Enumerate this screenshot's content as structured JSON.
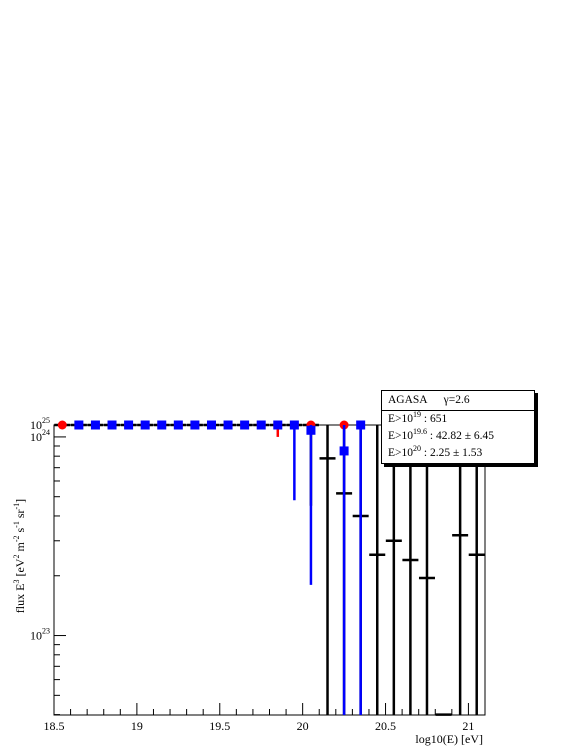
{
  "stats_box": {
    "name": "AGASA",
    "gamma": "γ=2.6",
    "rows": [
      {
        "prefix": "E>10",
        "exp": "19",
        "value": " : 651"
      },
      {
        "prefix": "E>10",
        "exp": "19.6",
        "value": " : 42.82 ± 6.45"
      },
      {
        "prefix": "E>10",
        "exp": "20",
        "value": "  : 2.25 ± 1.53"
      }
    ]
  },
  "chart_data": {
    "type": "scatter",
    "xlabel": "log10(E) [eV]",
    "ylabel": {
      "main": "flux E",
      "exp1": "3",
      "mid": " [eV",
      "exp2": "2",
      "mid2": " m",
      "exp3": "-2",
      "mid3": " s",
      "exp4": "-1",
      "mid4": " sr",
      "exp5": "-1",
      "end": "]"
    },
    "xlim": [
      18.5,
      21.1
    ],
    "ylim_log10": [
      22.6,
      24.06
    ],
    "y_log_scale": true,
    "x_ticks": [
      "18.5",
      "19",
      "19.5",
      "20",
      "20.5",
      "21"
    ],
    "x_tick_values": [
      18.5,
      19,
      19.5,
      20,
      20.5,
      21
    ],
    "y_ticks": [
      {
        "base": "10",
        "exp": "23",
        "value": 1e+23
      },
      {
        "base": "10",
        "exp": "24",
        "value": 1e+24
      },
      {
        "base": "10",
        "exp": "25",
        "value": 1e+25
      }
    ],
    "colors": {
      "black": "#000000",
      "red": "#ff0000",
      "blue": "#0000ff"
    },
    "series": [
      {
        "marker": "dash",
        "color": "#000000",
        "points": [
          {
            "x": 18.55,
            "y": 2e+24
          },
          {
            "x": 18.65,
            "y": 2e+24
          },
          {
            "x": 18.75,
            "y": 1.95e+24
          },
          {
            "x": 18.85,
            "y": 2e+24
          },
          {
            "x": 18.95,
            "y": 2.1e+24
          },
          {
            "x": 19.05,
            "y": 2.15e+24
          },
          {
            "x": 19.15,
            "y": 2.2e+24
          },
          {
            "x": 19.25,
            "y": 2.4e+24
          },
          {
            "x": 19.35,
            "y": 2.55e+24
          },
          {
            "x": 19.45,
            "y": 2.55e+24
          },
          {
            "x": 19.55,
            "y": 2.65e+24
          },
          {
            "x": 19.65,
            "y": 2.75e+24
          },
          {
            "x": 19.75,
            "y": 2.8e+24
          },
          {
            "x": 19.85,
            "y": 2.55e+24,
            "ylo": 2.2e+24,
            "yhi": 3.3e+24
          },
          {
            "x": 19.95,
            "y": 1.9e+24,
            "ylo": 1.2e+24,
            "yhi": 2.5e+24
          },
          {
            "x": 20.05,
            "y": 1.3e+24,
            "ylo": 4.5e+23,
            "yhi": 2.4e+24
          },
          {
            "x": 20.15,
            "y": 7.8e+23,
            "ylo": 1e+22,
            "yhi": 1.95e+24
          },
          {
            "x": 20.25,
            "y": 5.2e+23,
            "ylo": 1e+22,
            "yhi": 1.85e+24
          },
          {
            "x": 20.35,
            "y": 4e+23,
            "ylo": 1e+22,
            "yhi": 1.7e+24
          },
          {
            "x": 20.45,
            "y": 2.55e+23,
            "ylo": 1e+22,
            "yhi": 1.55e+24
          },
          {
            "x": 20.55,
            "y": 3e+23,
            "ylo": 1e+22,
            "yhi": 2.2e+24
          },
          {
            "x": 20.65,
            "y": 2.4e+23,
            "ylo": 1e+22,
            "yhi": 2.2e+24
          },
          {
            "x": 20.75,
            "y": 1.95e+23,
            "ylo": 1e+22,
            "yhi": 2.35e+24
          },
          {
            "x": 20.85,
            "y": 4e+22
          },
          {
            "x": 20.95,
            "y": 3.2e+23,
            "ylo": 1e+22,
            "yhi": 4.9e+24
          },
          {
            "x": 21.05,
            "y": 2.55e+23,
            "ylo": 1e+22,
            "yhi": 5.3e+24
          }
        ]
      },
      {
        "marker": "circle",
        "color": "#ff0000",
        "points": [
          {
            "x": 18.55,
            "y": 2.45e+24
          },
          {
            "x": 18.65,
            "y": 2.35e+24
          },
          {
            "x": 18.75,
            "y": 2.2e+24
          },
          {
            "x": 18.85,
            "y": 2.05e+24
          },
          {
            "x": 18.95,
            "y": 2.2e+24
          },
          {
            "x": 19.05,
            "y": 2.15e+24
          },
          {
            "x": 19.15,
            "y": 2.4e+24
          },
          {
            "x": 19.25,
            "y": 2.3e+24
          },
          {
            "x": 19.35,
            "y": 2.45e+24
          },
          {
            "x": 19.45,
            "y": 3.3e+24
          },
          {
            "x": 19.55,
            "y": 3.9e+24,
            "ylo": 3.4e+24,
            "yhi": 4.3e+24
          },
          {
            "x": 19.65,
            "y": 3.1e+24,
            "ylo": 2.5e+24,
            "yhi": 3.7e+24
          },
          {
            "x": 19.75,
            "y": 2.9e+24,
            "ylo": 2.2e+24,
            "yhi": 3.9e+24
          },
          {
            "x": 19.85,
            "y": 1.85e+24,
            "ylo": 1e+24,
            "yhi": 2.8e+24
          },
          {
            "x": 19.95,
            "y": 3.9e+24,
            "ylo": 2.7e+24,
            "yhi": 5.5e+24
          },
          {
            "x": 20.05,
            "y": 5.6e+24,
            "ylo": 3.5e+24,
            "yhi": 8e+24
          },
          {
            "x": 20.25,
            "y": 4.3e+24,
            "ylo": 2e+24,
            "yhi": 7.6e+24
          }
        ]
      },
      {
        "marker": "square",
        "color": "#0000ff",
        "points": [
          {
            "x": 18.65,
            "y": 1.95e+24
          },
          {
            "x": 18.75,
            "y": 1.85e+24
          },
          {
            "x": 18.85,
            "y": 1.9e+24
          },
          {
            "x": 18.95,
            "y": 2.15e+24
          },
          {
            "x": 19.05,
            "y": 2.15e+24
          },
          {
            "x": 19.15,
            "y": 2.15e+24
          },
          {
            "x": 19.25,
            "y": 2.55e+24
          },
          {
            "x": 19.35,
            "y": 2.95e+24
          },
          {
            "x": 19.45,
            "y": 2.6e+24
          },
          {
            "x": 19.55,
            "y": 2.7e+24,
            "ylo": 2.3e+24,
            "yhi": 3.1e+24
          },
          {
            "x": 19.65,
            "y": 2.9e+24,
            "ylo": 2.3e+24,
            "yhi": 3.5e+24
          },
          {
            "x": 19.75,
            "y": 2.9e+24,
            "ylo": 2.5e+24,
            "yhi": 3.4e+24
          },
          {
            "x": 19.85,
            "y": 3.3e+24,
            "ylo": 2.7e+24,
            "yhi": 3.9e+24
          },
          {
            "x": 19.95,
            "y": 1.15e+24,
            "ylo": 4.8e+23,
            "yhi": 1.8e+24
          },
          {
            "x": 20.05,
            "y": 1.08e+24,
            "ylo": 1.8e+23,
            "yhi": 2e+24
          },
          {
            "x": 20.25,
            "y": 8.5e+23,
            "ylo": 1e+22,
            "yhi": 1.6e+24
          },
          {
            "x": 20.35,
            "y": 2.05e+24,
            "ylo": 1e+22,
            "yhi": 4.2e+24
          }
        ]
      }
    ]
  }
}
